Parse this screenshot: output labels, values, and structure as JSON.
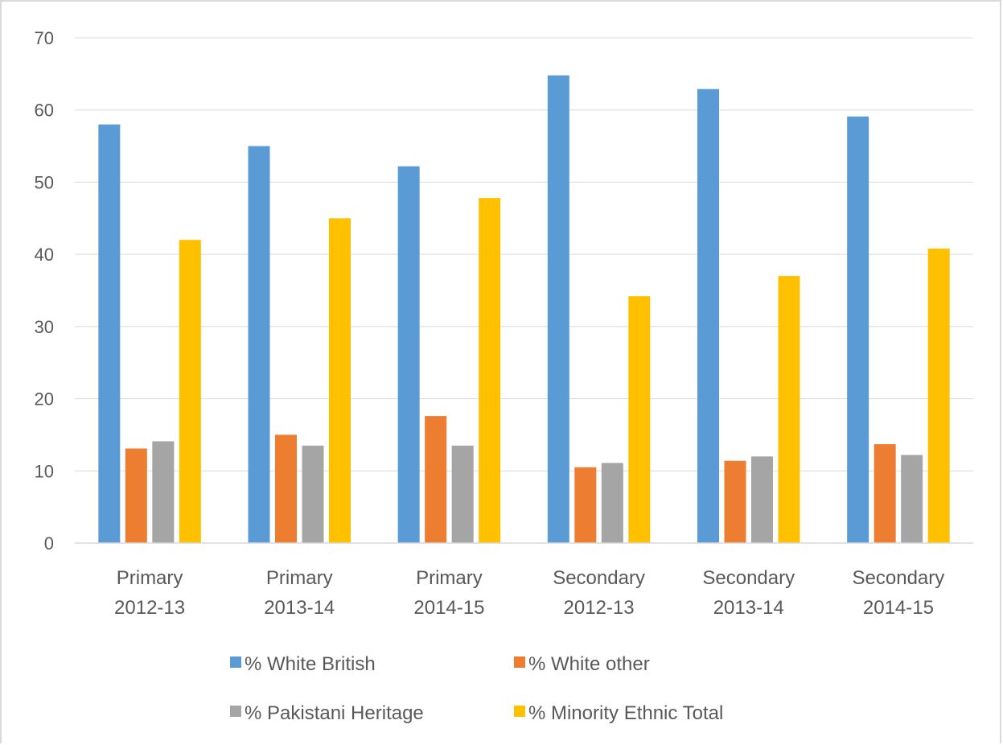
{
  "chart_data": {
    "type": "bar",
    "categories": [
      [
        "Primary",
        "2012-13"
      ],
      [
        "Primary",
        "2013-14"
      ],
      [
        "Primary",
        "2014-15"
      ],
      [
        "Secondary",
        "2012-13"
      ],
      [
        "Secondary",
        "2013-14"
      ],
      [
        "Secondary",
        "2014-15"
      ]
    ],
    "series": [
      {
        "name": "% White British",
        "color": "#5b9bd5",
        "values": [
          58,
          55,
          52.2,
          64.8,
          62.9,
          59.1
        ]
      },
      {
        "name": "% White other",
        "color": "#ed7d31",
        "values": [
          13.1,
          15,
          17.6,
          10.5,
          11.4,
          13.7
        ]
      },
      {
        "name": "% Pakistani Heritage",
        "color": "#a5a5a5",
        "values": [
          14.1,
          13.5,
          13.5,
          11.1,
          12,
          12.2
        ]
      },
      {
        "name": "% Minority Ethnic Total",
        "color": "#ffc000",
        "values": [
          42,
          45,
          47.8,
          34.2,
          37,
          40.8
        ]
      }
    ],
    "title": "",
    "xlabel": "",
    "ylabel": "",
    "ylim": [
      0,
      70
    ],
    "yticks": [
      "0",
      "10",
      "20",
      "30",
      "40",
      "50",
      "60",
      "70"
    ],
    "grid": true,
    "legend_position": "bottom"
  }
}
